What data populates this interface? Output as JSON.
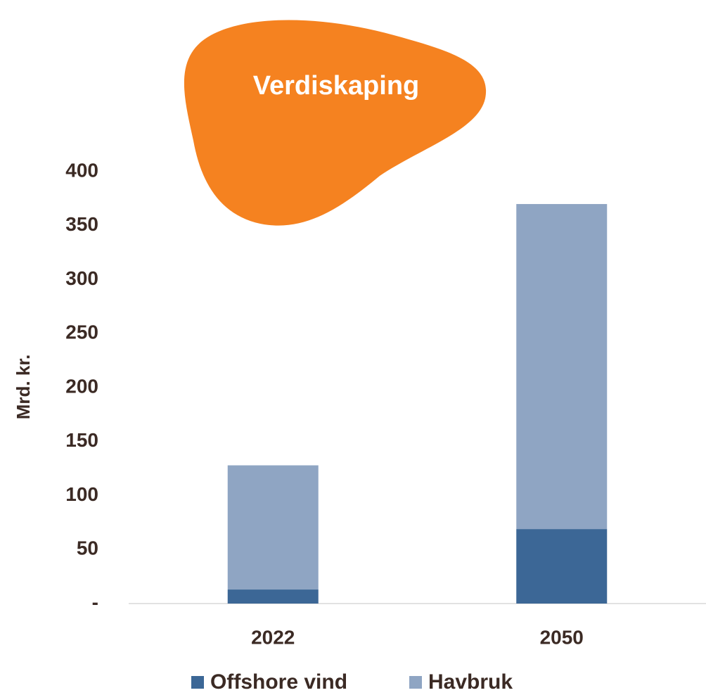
{
  "chart_data": {
    "type": "stacked_bar",
    "title": "Verdiskaping",
    "y_label": "Mrd. kr.",
    "categories": [
      "2022",
      "2050"
    ],
    "series": [
      {
        "name": "Offshore vind",
        "color": "#3c6796",
        "values": [
          13,
          69
        ]
      },
      {
        "name": "Havbruk",
        "color": "#8fa5c3",
        "values": [
          115,
          301
        ]
      }
    ],
    "ylim": [
      0,
      400
    ],
    "yticks": [
      {
        "value": 0,
        "label": "-"
      },
      50,
      100,
      150,
      200,
      250,
      300,
      350,
      400
    ],
    "title_color": "#f58220"
  }
}
